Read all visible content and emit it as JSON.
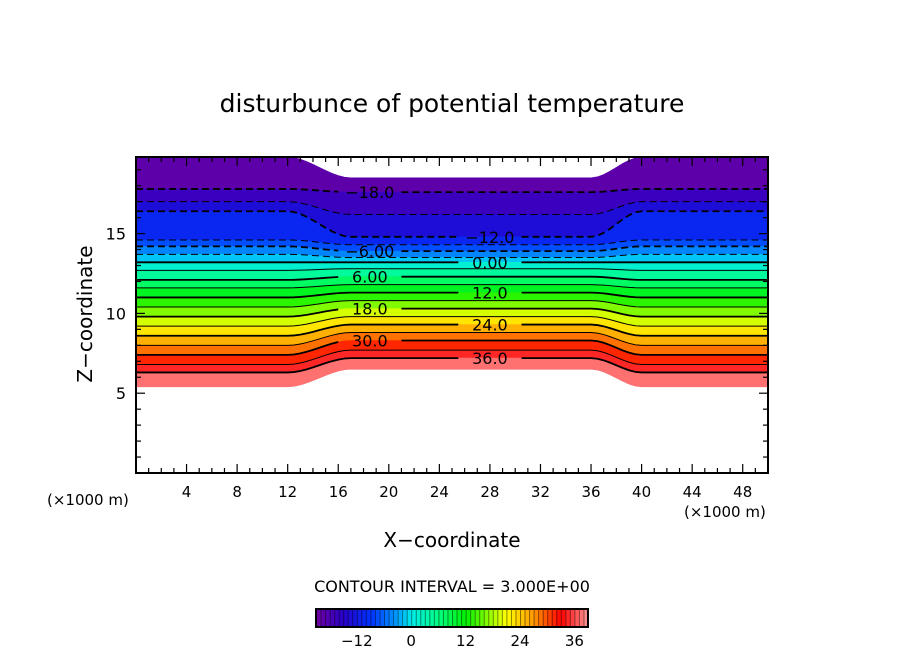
{
  "chart_data": {
    "type": "contour",
    "title": "disturbunce of potential temperature",
    "xlabel": "X−coordinate",
    "ylabel": "Z−coordinate",
    "x_unit_left": "(×1000 m)",
    "x_unit_right": "(×1000 m)",
    "xlim": [
      0,
      50
    ],
    "ylim": [
      0,
      19.8
    ],
    "x_ticks": [
      4,
      8,
      12,
      16,
      20,
      24,
      28,
      32,
      36,
      40,
      44,
      48
    ],
    "y_ticks": [
      5,
      10,
      15
    ],
    "contour_interval_text": "CONTOUR INTERVAL = 3.000E+00",
    "levels": [
      {
        "v": -21,
        "z_edge": 19.8,
        "z_mid": 18.5
      },
      {
        "v": -18,
        "z_edge": 17.8,
        "z_mid": 17.6
      },
      {
        "v": -15,
        "z_edge": 17.0,
        "z_mid": 16.2
      },
      {
        "v": -12,
        "z_edge": 16.4,
        "z_mid": 14.8
      },
      {
        "v": -9,
        "z_edge": 14.6,
        "z_mid": 14.3
      },
      {
        "v": -6,
        "z_edge": 14.2,
        "z_mid": 13.9
      },
      {
        "v": -3,
        "z_edge": 13.7,
        "z_mid": 13.5
      },
      {
        "v": 0,
        "z_edge": 13.2,
        "z_mid": 13.2
      },
      {
        "v": 3,
        "z_edge": 12.7,
        "z_mid": 12.8
      },
      {
        "v": 6,
        "z_edge": 12.1,
        "z_mid": 12.3
      },
      {
        "v": 9,
        "z_edge": 11.6,
        "z_mid": 11.8
      },
      {
        "v": 12,
        "z_edge": 11.0,
        "z_mid": 11.3
      },
      {
        "v": 15,
        "z_edge": 10.4,
        "z_mid": 10.8
      },
      {
        "v": 18,
        "z_edge": 9.8,
        "z_mid": 10.3
      },
      {
        "v": 21,
        "z_edge": 9.2,
        "z_mid": 9.8
      },
      {
        "v": 24,
        "z_edge": 8.6,
        "z_mid": 9.3
      },
      {
        "v": 27,
        "z_edge": 8.0,
        "z_mid": 8.8
      },
      {
        "v": 30,
        "z_edge": 7.4,
        "z_mid": 8.3
      },
      {
        "v": 33,
        "z_edge": 6.8,
        "z_mid": 7.7
      },
      {
        "v": 36,
        "z_edge": 6.3,
        "z_mid": 7.2
      },
      {
        "v": 39,
        "z_edge": 5.4,
        "z_mid": 6.5
      }
    ],
    "contour_labels": [
      {
        "v": -18,
        "text": "−18.0"
      },
      {
        "v": -12,
        "text": "−12.0"
      },
      {
        "v": -6,
        "text": "−6.00"
      },
      {
        "v": 0,
        "text": "0.00"
      },
      {
        "v": 6,
        "text": "6.00"
      },
      {
        "v": 12,
        "text": "12.0"
      },
      {
        "v": 18,
        "text": "18.0"
      },
      {
        "v": 24,
        "text": "24.0"
      },
      {
        "v": 30,
        "text": "30.0"
      },
      {
        "v": 36,
        "text": "36.0"
      }
    ],
    "colorbar": {
      "range": [
        -21,
        39
      ],
      "ticks": [
        {
          "v": -12,
          "text": "−12"
        },
        {
          "v": 0,
          "text": "0"
        },
        {
          "v": 12,
          "text": "12"
        },
        {
          "v": 24,
          "text": "24"
        },
        {
          "v": 36,
          "text": "36"
        }
      ]
    }
  }
}
